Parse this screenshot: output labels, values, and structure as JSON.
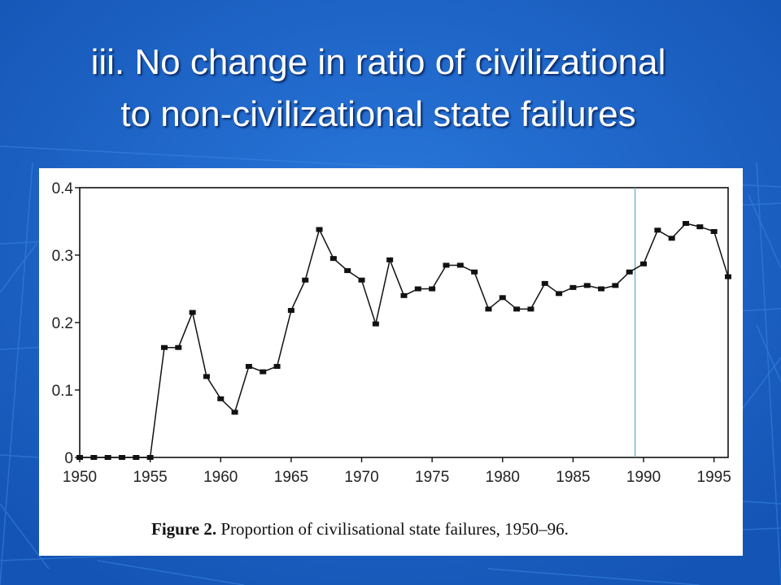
{
  "slide": {
    "title_line1": "iii. No change in ratio of civilizational",
    "title_line2": "to non-civilizational state failures",
    "background_color": "#1a64c8"
  },
  "figure": {
    "caption_label": "Figure 2.",
    "caption_text": "Proportion of civilisational state failures, 1950–96."
  },
  "chart_data": {
    "type": "line",
    "title": "",
    "xlabel": "",
    "ylabel": "",
    "xlim": [
      1950,
      1996
    ],
    "ylim": [
      0,
      0.4
    ],
    "x_ticks": [
      1950,
      1955,
      1960,
      1965,
      1970,
      1975,
      1980,
      1985,
      1990,
      1995
    ],
    "x_tick_labels": [
      "1950",
      "1955",
      "1960",
      "1965",
      "1970",
      "1975",
      "1980",
      "1985",
      "1990",
      "1995"
    ],
    "y_ticks": [
      0,
      0.1,
      0.2,
      0.3,
      0.4
    ],
    "y_tick_labels": [
      "0",
      "0.1",
      "0.2",
      "0.3",
      "0.4"
    ],
    "vertical_reference_line_x": 1989.4,
    "reference_line_color": "#5aa8c8",
    "grid": false,
    "series": [
      {
        "x": [
          1950,
          1951,
          1952,
          1953,
          1954,
          1955,
          1956,
          1957,
          1958,
          1959,
          1960,
          1961,
          1962,
          1963,
          1964,
          1965,
          1966,
          1967,
          1968,
          1969,
          1970,
          1971,
          1972,
          1973,
          1974,
          1975,
          1976,
          1977,
          1978,
          1979,
          1980,
          1981,
          1982,
          1983,
          1984,
          1985,
          1986,
          1987,
          1988,
          1989,
          1990,
          1991,
          1992,
          1993,
          1994,
          1995,
          1996
        ],
        "values": [
          0,
          0,
          0,
          0,
          0,
          0,
          0.163,
          0.163,
          0.215,
          0.12,
          0.087,
          0.067,
          0.135,
          0.127,
          0.135,
          0.218,
          0.263,
          0.338,
          0.295,
          0.277,
          0.263,
          0.198,
          0.293,
          0.24,
          0.25,
          0.25,
          0.285,
          0.285,
          0.275,
          0.22,
          0.237,
          0.22,
          0.22,
          0.258,
          0.243,
          0.252,
          0.255,
          0.25,
          0.255,
          0.275,
          0.287,
          0.337,
          0.325,
          0.347,
          0.342,
          0.335,
          0.268
        ]
      }
    ]
  }
}
